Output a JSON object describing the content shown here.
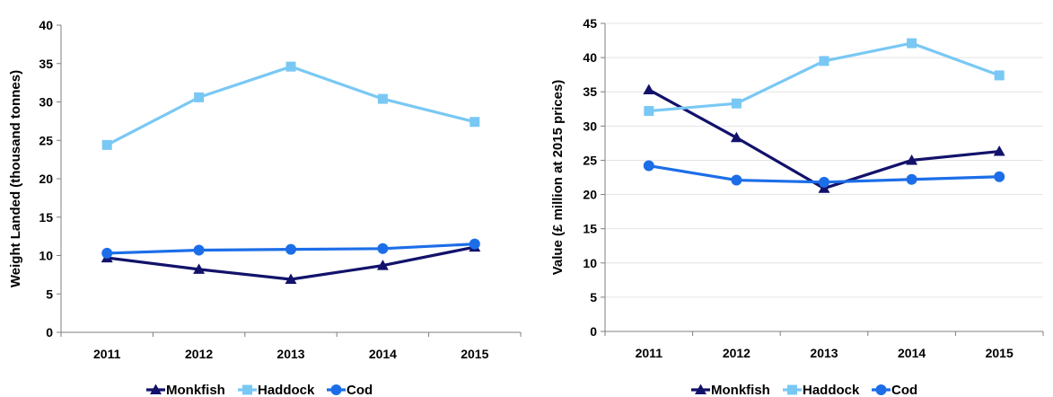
{
  "chart_data": [
    {
      "type": "line",
      "categories": [
        "2011",
        "2012",
        "2013",
        "2014",
        "2015"
      ],
      "ylabel": "Weight Landed (thousand tonnes)",
      "ylim": [
        0,
        40
      ],
      "yticks": [
        "0",
        "5",
        "10",
        "15",
        "20",
        "25",
        "30",
        "35",
        "40"
      ],
      "grid": false,
      "legend": "bottom",
      "series": [
        {
          "name": "Monkfish",
          "color": "#12126b",
          "marker": "triangle",
          "values": [
            9.7,
            8.2,
            6.9,
            8.7,
            11.1
          ]
        },
        {
          "name": "Haddock",
          "color": "#79c8f4",
          "marker": "square",
          "values": [
            24.4,
            30.6,
            34.6,
            30.4,
            27.4
          ]
        },
        {
          "name": "Cod",
          "color": "#1c6ee8",
          "marker": "circle",
          "values": [
            10.3,
            10.7,
            10.8,
            10.9,
            11.5
          ]
        }
      ]
    },
    {
      "type": "line",
      "categories": [
        "2011",
        "2012",
        "2013",
        "2014",
        "2015"
      ],
      "ylabel": "Value (£ million at 2015 prices)",
      "ylim": [
        0,
        45
      ],
      "yticks": [
        "0",
        "5",
        "10",
        "15",
        "20",
        "25",
        "30",
        "35",
        "40",
        "45"
      ],
      "grid": true,
      "legend": "bottom",
      "series": [
        {
          "name": "Monkfish",
          "color": "#12126b",
          "marker": "triangle",
          "values": [
            35.3,
            28.3,
            20.9,
            25.0,
            26.3
          ]
        },
        {
          "name": "Haddock",
          "color": "#79c8f4",
          "marker": "square",
          "values": [
            32.2,
            33.3,
            39.5,
            42.1,
            37.4
          ]
        },
        {
          "name": "Cod",
          "color": "#1c6ee8",
          "marker": "circle",
          "values": [
            24.2,
            22.1,
            21.8,
            22.2,
            22.6
          ]
        }
      ]
    }
  ]
}
